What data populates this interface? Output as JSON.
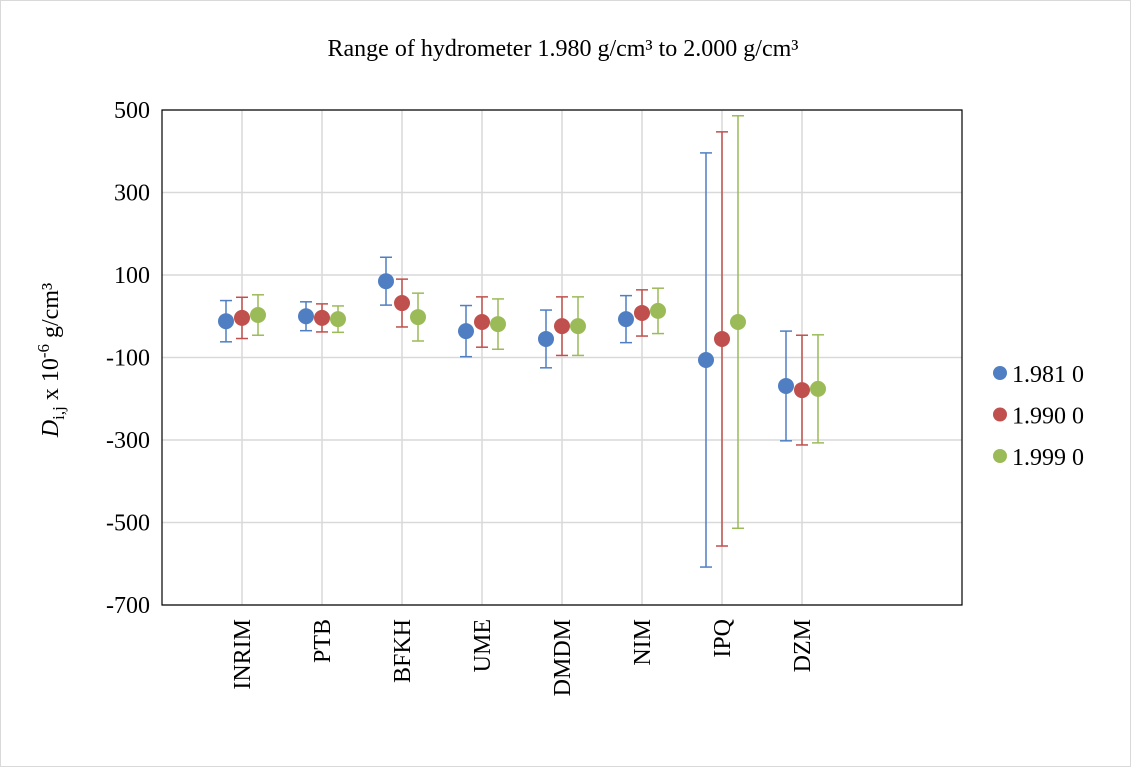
{
  "chart_data": {
    "type": "errorbar",
    "title": "Range of hydrometer 1.980 g/cm³ to 2.000 g/cm³",
    "ylabel": {
      "symbol": "D",
      "subscript": "i,j",
      "text": " x 10",
      "superscript": "-6",
      "unit": " g/cm³"
    },
    "categories": [
      "INRIM",
      "PTB",
      "BFKH",
      "UME",
      "DMDM",
      "NIM",
      "IPQ",
      "DZM"
    ],
    "series": [
      {
        "name": "1.981 0",
        "color": "#4f7fc2",
        "values": [
          -12,
          0,
          85,
          -36,
          -55,
          -7,
          -106,
          -169
        ],
        "errors": [
          50,
          35,
          58,
          62,
          70,
          57,
          502,
          133
        ]
      },
      {
        "name": "1.990 0",
        "color": "#c0504d",
        "values": [
          -4,
          -4,
          32,
          -14,
          -24,
          8,
          -55,
          -179
        ],
        "errors": [
          50,
          34,
          58,
          61,
          71,
          56,
          502,
          133
        ]
      },
      {
        "name": "1.999 0",
        "color": "#9bbb59",
        "values": [
          3,
          -7,
          -2,
          -19,
          -24,
          13,
          -14,
          -176
        ],
        "errors": [
          49,
          32,
          58,
          61,
          71,
          55,
          500,
          131
        ]
      }
    ],
    "ylim": [
      -700,
      500
    ],
    "yticks": [
      -700,
      -500,
      -300,
      -100,
      100,
      300,
      500
    ],
    "grid": true,
    "legend": "right"
  }
}
